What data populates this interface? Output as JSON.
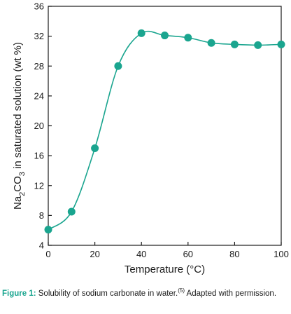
{
  "chart_data": {
    "type": "line",
    "xlabel": "Temperature (°C)",
    "ylabel": {
      "prefix": "Na",
      "sub1": "2",
      "mid": "CO",
      "sub2": "3",
      "suffix": " in saturated solution (wt %)"
    },
    "xlim": [
      0,
      100
    ],
    "ylim": [
      4,
      36
    ],
    "x_ticks": [
      0,
      20,
      40,
      60,
      80,
      100
    ],
    "y_ticks": [
      4,
      8,
      12,
      16,
      20,
      24,
      28,
      32,
      36
    ],
    "grid": false,
    "legend": "none",
    "series": [
      {
        "color": "#1aa58f",
        "x": [
          0,
          10,
          20,
          30,
          40,
          50,
          60,
          70,
          80,
          90,
          100
        ],
        "y": [
          6.1,
          8.5,
          17.0,
          28.0,
          32.4,
          32.1,
          31.8,
          31.1,
          30.9,
          30.8,
          30.9
        ]
      }
    ]
  },
  "caption": {
    "label": "Figure 1:",
    "text": " Solubility of sodium carbonate in water.",
    "ref": "(5)",
    "tail": " Adapted with permission."
  }
}
